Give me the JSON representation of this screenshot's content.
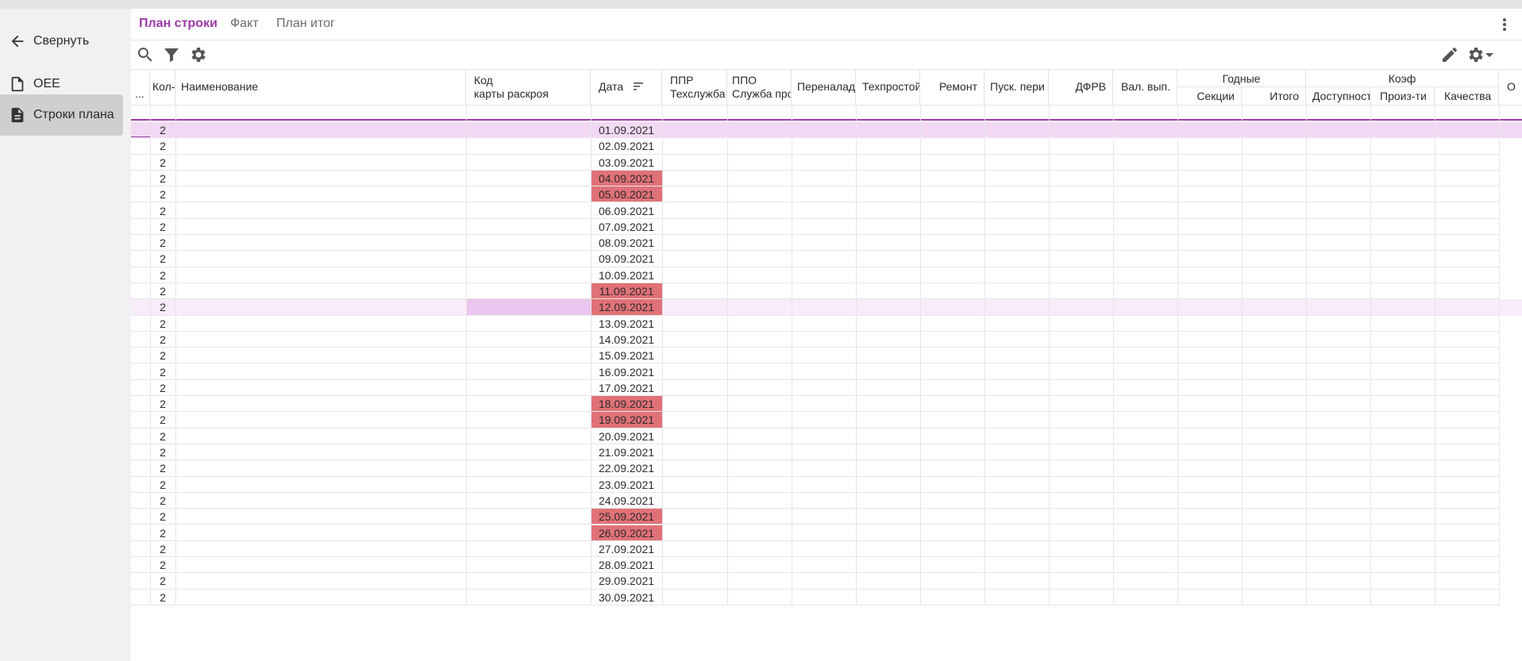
{
  "sidebar": {
    "items": [
      {
        "label": "Свернуть",
        "icon": "arrow-left-icon"
      },
      {
        "label": "OEE",
        "icon": "document-outline-icon"
      },
      {
        "label": "Строки плана",
        "icon": "document-filled-icon",
        "active": true
      }
    ]
  },
  "tabs": [
    {
      "label": "План строки",
      "active": true
    },
    {
      "label": "Факт"
    },
    {
      "label": "План итог"
    }
  ],
  "toolbar": {
    "left_icons": [
      "search-icon",
      "filter-icon",
      "gear-icon"
    ],
    "right_icons": [
      "pencil-icon",
      "gear-dropdown-icon"
    ]
  },
  "table": {
    "columns": {
      "selector": "...",
      "qty": "Кол-",
      "name": "Наименование",
      "code_line1": "Код",
      "code_line2": "карты раскроя",
      "date": "Дата",
      "ppr_line1": "ППР",
      "ppr_line2": "Техслужба",
      "ppo_line1": "ППО",
      "ppo_line2": "Служба про",
      "changeover": "Переналад",
      "downtime": "Техпростой",
      "repair": "Ремонт",
      "startup": "Пуск. пери",
      "dfrv": "ДФРВ",
      "gross_output": "Вал. вып.",
      "good_group": "Годные",
      "good_sections": "Секции",
      "good_total": "Итого",
      "coef_group": "Коэф",
      "coef_availability": "Доступност",
      "coef_performance": "Произ-ти",
      "coef_quality": "Качества",
      "last_partial": "О"
    },
    "rows": [
      {
        "qty": "2",
        "date": "01.09.2021"
      },
      {
        "qty": "2",
        "date": "02.09.2021"
      },
      {
        "qty": "2",
        "date": "03.09.2021"
      },
      {
        "qty": "2",
        "date": "04.09.2021"
      },
      {
        "qty": "2",
        "date": "05.09.2021"
      },
      {
        "qty": "2",
        "date": "06.09.2021"
      },
      {
        "qty": "2",
        "date": "07.09.2021"
      },
      {
        "qty": "2",
        "date": "08.09.2021"
      },
      {
        "qty": "2",
        "date": "09.09.2021"
      },
      {
        "qty": "2",
        "date": "10.09.2021"
      },
      {
        "qty": "2",
        "date": "11.09.2021"
      },
      {
        "qty": "2",
        "date": "12.09.2021"
      },
      {
        "qty": "2",
        "date": "13.09.2021"
      },
      {
        "qty": "2",
        "date": "14.09.2021"
      },
      {
        "qty": "2",
        "date": "15.09.2021"
      },
      {
        "qty": "2",
        "date": "16.09.2021"
      },
      {
        "qty": "2",
        "date": "17.09.2021"
      },
      {
        "qty": "2",
        "date": "18.09.2021"
      },
      {
        "qty": "2",
        "date": "19.09.2021"
      },
      {
        "qty": "2",
        "date": "20.09.2021"
      },
      {
        "qty": "2",
        "date": "21.09.2021"
      },
      {
        "qty": "2",
        "date": "22.09.2021"
      },
      {
        "qty": "2",
        "date": "23.09.2021"
      },
      {
        "qty": "2",
        "date": "24.09.2021"
      },
      {
        "qty": "2",
        "date": "25.09.2021"
      },
      {
        "qty": "2",
        "date": "26.09.2021"
      },
      {
        "qty": "2",
        "date": "27.09.2021"
      },
      {
        "qty": "2",
        "date": "28.09.2021"
      },
      {
        "qty": "2",
        "date": "29.09.2021"
      },
      {
        "qty": "2",
        "date": "30.09.2021"
      }
    ]
  },
  "colors": {
    "accent": "#9c3aa8",
    "selected_row": "#f1d9f3",
    "hover_row": "#f8ecf9",
    "weekend_date": "#e17178",
    "active_nav": "#cfcfd2"
  }
}
